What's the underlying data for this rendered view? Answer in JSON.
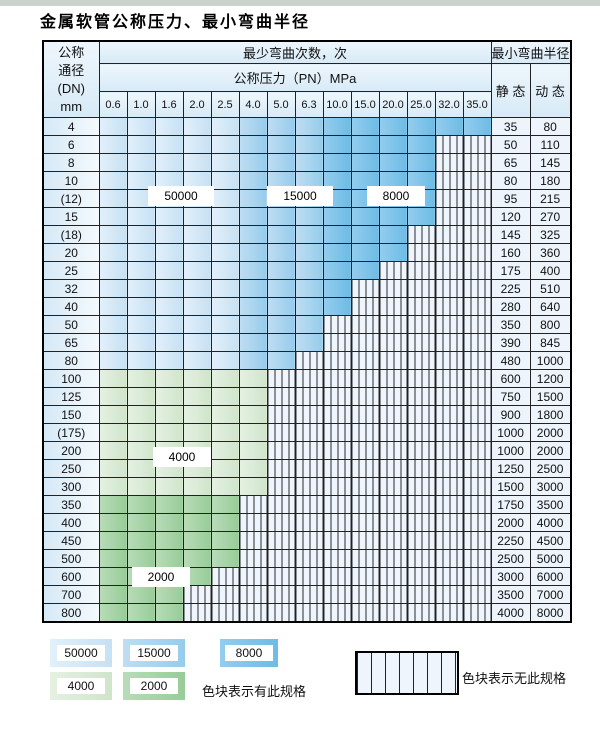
{
  "title": "金属软管公称压力、最小弯曲半径",
  "table": {
    "dn_header_lines": [
      "公称",
      "通径",
      "(DN)",
      "mm"
    ],
    "bend_cycles_header": "最少弯曲次数，次",
    "pressure_header": "公称压力（PN）MPa",
    "radius_header": "最小弯曲半径",
    "static_header": "静 态",
    "dynamic_header": "动 态",
    "pressure_columns": [
      "0.6",
      "1.0",
      "1.6",
      "2.0",
      "2.5",
      "4.0",
      "5.0",
      "6.3",
      "10.0",
      "15.0",
      "20.0",
      "25.0",
      "32.0",
      "35.0"
    ],
    "rows": [
      {
        "dn": "4",
        "max_pn": "35.0",
        "zone": "columns",
        "static": "35",
        "dynamic": "80"
      },
      {
        "dn": "6",
        "max_pn": "25.0",
        "zone": "columns",
        "static": "50",
        "dynamic": "110"
      },
      {
        "dn": "8",
        "max_pn": "25.0",
        "zone": "columns",
        "static": "65",
        "dynamic": "145"
      },
      {
        "dn": "10",
        "max_pn": "25.0",
        "zone": "columns",
        "static": "80",
        "dynamic": "180"
      },
      {
        "dn": "(12)",
        "max_pn": "25.0",
        "zone": "columns",
        "static": "95",
        "dynamic": "215"
      },
      {
        "dn": "15",
        "max_pn": "25.0",
        "zone": "columns",
        "static": "120",
        "dynamic": "270"
      },
      {
        "dn": "(18)",
        "max_pn": "20.0",
        "zone": "columns",
        "static": "145",
        "dynamic": "325"
      },
      {
        "dn": "20",
        "max_pn": "20.0",
        "zone": "columns",
        "static": "160",
        "dynamic": "360"
      },
      {
        "dn": "25",
        "max_pn": "15.0",
        "zone": "columns",
        "static": "175",
        "dynamic": "400"
      },
      {
        "dn": "32",
        "max_pn": "10.0",
        "zone": "columns",
        "static": "225",
        "dynamic": "510"
      },
      {
        "dn": "40",
        "max_pn": "10.0",
        "zone": "columns",
        "static": "280",
        "dynamic": "640"
      },
      {
        "dn": "50",
        "max_pn": "6.3",
        "zone": "columns",
        "static": "350",
        "dynamic": "800"
      },
      {
        "dn": "65",
        "max_pn": "6.3",
        "zone": "columns",
        "static": "390",
        "dynamic": "845"
      },
      {
        "dn": "80",
        "max_pn": "5.0",
        "zone": "columns",
        "static": "480",
        "dynamic": "1000"
      },
      {
        "dn": "100",
        "max_pn": "4.0",
        "zone": "4000",
        "static": "600",
        "dynamic": "1200"
      },
      {
        "dn": "125",
        "max_pn": "4.0",
        "zone": "4000",
        "static": "750",
        "dynamic": "1500"
      },
      {
        "dn": "150",
        "max_pn": "4.0",
        "zone": "4000",
        "static": "900",
        "dynamic": "1800"
      },
      {
        "dn": "(175)",
        "max_pn": "4.0",
        "zone": "4000",
        "static": "1000",
        "dynamic": "2000"
      },
      {
        "dn": "200",
        "max_pn": "4.0",
        "zone": "4000",
        "static": "1000",
        "dynamic": "2000"
      },
      {
        "dn": "250",
        "max_pn": "4.0",
        "zone": "4000",
        "static": "1250",
        "dynamic": "2500"
      },
      {
        "dn": "300",
        "max_pn": "4.0",
        "zone": "4000",
        "static": "1500",
        "dynamic": "3000"
      },
      {
        "dn": "350",
        "max_pn": "2.5",
        "zone": "2000",
        "static": "1750",
        "dynamic": "3500"
      },
      {
        "dn": "400",
        "max_pn": "2.5",
        "zone": "2000",
        "static": "2000",
        "dynamic": "4000"
      },
      {
        "dn": "450",
        "max_pn": "2.5",
        "zone": "2000",
        "static": "2250",
        "dynamic": "4500"
      },
      {
        "dn": "500",
        "max_pn": "2.5",
        "zone": "2000",
        "static": "2500",
        "dynamic": "5000"
      },
      {
        "dn": "600",
        "max_pn": "2.0",
        "zone": "2000",
        "static": "3000",
        "dynamic": "6000"
      },
      {
        "dn": "700",
        "max_pn": "1.6",
        "zone": "2000",
        "static": "3500",
        "dynamic": "7000"
      },
      {
        "dn": "800",
        "max_pn": "1.6",
        "zone": "2000",
        "static": "4000",
        "dynamic": "8000"
      }
    ]
  },
  "blue_zones": [
    {
      "cycles": "50000",
      "col_start": 0,
      "col_end": 4
    },
    {
      "cycles": "15000",
      "col_start": 5,
      "col_end": 7
    },
    {
      "cycles": "8000",
      "col_start": 8,
      "col_end": 13
    }
  ],
  "zone_colors": {
    "50000": "#cde5f5",
    "15000": "#a0d2ef",
    "8000": "#76c0e7",
    "4000": "#d8e9d4",
    "2000": "#a3d1a3",
    "no_spec_background": "#eef5fc",
    "grid_line": "#222222"
  },
  "cycle_labels": [
    "50000",
    "15000",
    "8000",
    "4000",
    "2000"
  ],
  "legend": {
    "has_spec_items": [
      {
        "label": "50000"
      },
      {
        "label": "15000"
      },
      {
        "label": "8000"
      },
      {
        "label": "4000"
      },
      {
        "label": "2000"
      }
    ],
    "has_spec_text": "色块表示有此规格",
    "no_spec_text": "色块表示无此规格"
  }
}
